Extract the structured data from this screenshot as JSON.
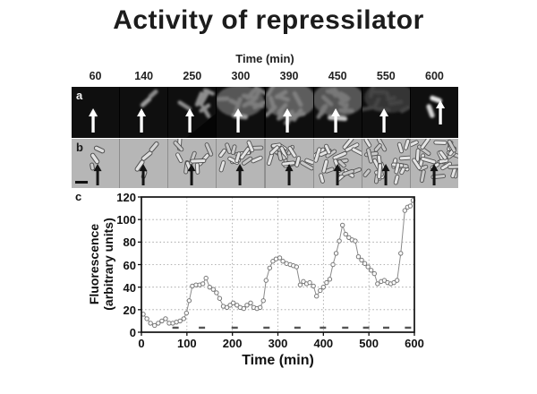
{
  "title": "Activity of repressilator",
  "colors": {
    "background": "#ffffff",
    "title_text": "#1c1c1c",
    "axis": "#111111",
    "series_line": "#8a8a8a",
    "marker_stroke": "#777777",
    "marker_fill": "#ffffff",
    "grid": "#9a9a9a",
    "division_mark": "#555555",
    "micrograph_a_bg": "#0f0f0f",
    "micrograph_b_bg": "#b6b6b6",
    "arrow_a": "#ffffff",
    "arrow_b": "#141414"
  },
  "micrograph_strip": {
    "header": "Time (min)",
    "row_a_label": "a",
    "row_b_label": "b",
    "frames": [
      {
        "time": "60",
        "a_style": "faint-speck",
        "b_cells": 3
      },
      {
        "time": "140",
        "a_style": "small-pair",
        "b_cells": 4
      },
      {
        "time": "250",
        "a_style": "small-cluster",
        "b_cells": 10
      },
      {
        "time": "300",
        "a_style": "colony",
        "b_cells": 14
      },
      {
        "time": "390",
        "a_style": "large-colony",
        "b_cells": 17
      },
      {
        "time": "450",
        "a_style": "colony-bright-rod",
        "b_cells": 20
      },
      {
        "time": "550",
        "a_style": "dim-colony",
        "b_cells": 24
      },
      {
        "time": "600",
        "a_style": "bright-single",
        "b_cells": 26
      }
    ],
    "scale_bar_frame": 0
  },
  "chart_data": {
    "type": "line",
    "panel_label": "c",
    "xlabel": "Time (min)",
    "ylabel_line1": "Fluorescence",
    "ylabel_line2": "(arbitrary units)",
    "xlim": [
      0,
      600
    ],
    "ylim": [
      0,
      120
    ],
    "xticks": [
      0,
      100,
      200,
      300,
      400,
      500,
      600
    ],
    "yticks": [
      0,
      20,
      40,
      60,
      80,
      100,
      120
    ],
    "grid": "dotted",
    "marker": "open-circle",
    "legend": "none",
    "points": [
      [
        4,
        16
      ],
      [
        12,
        12
      ],
      [
        20,
        8
      ],
      [
        29,
        6
      ],
      [
        37,
        8
      ],
      [
        45,
        10
      ],
      [
        53,
        12
      ],
      [
        61,
        8
      ],
      [
        69,
        8
      ],
      [
        77,
        9
      ],
      [
        85,
        10
      ],
      [
        93,
        12
      ],
      [
        99,
        17
      ],
      [
        105,
        28
      ],
      [
        112,
        41
      ],
      [
        120,
        42
      ],
      [
        128,
        42
      ],
      [
        135,
        43
      ],
      [
        142,
        48
      ],
      [
        150,
        40
      ],
      [
        158,
        38
      ],
      [
        165,
        35
      ],
      [
        172,
        30
      ],
      [
        180,
        23
      ],
      [
        188,
        22
      ],
      [
        195,
        24
      ],
      [
        202,
        26
      ],
      [
        210,
        24
      ],
      [
        217,
        22
      ],
      [
        225,
        21
      ],
      [
        232,
        24
      ],
      [
        240,
        26
      ],
      [
        247,
        22
      ],
      [
        254,
        21
      ],
      [
        261,
        22
      ],
      [
        268,
        28
      ],
      [
        274,
        46
      ],
      [
        282,
        57
      ],
      [
        289,
        63
      ],
      [
        296,
        65
      ],
      [
        304,
        66
      ],
      [
        311,
        63
      ],
      [
        319,
        61
      ],
      [
        327,
        60
      ],
      [
        334,
        59
      ],
      [
        341,
        58
      ],
      [
        349,
        42
      ],
      [
        356,
        45
      ],
      [
        363,
        43
      ],
      [
        370,
        44
      ],
      [
        378,
        41
      ],
      [
        385,
        32
      ],
      [
        393,
        37
      ],
      [
        400,
        40
      ],
      [
        407,
        44
      ],
      [
        414,
        47
      ],
      [
        421,
        60
      ],
      [
        428,
        70
      ],
      [
        435,
        81
      ],
      [
        442,
        95
      ],
      [
        449,
        87
      ],
      [
        456,
        84
      ],
      [
        463,
        82
      ],
      [
        470,
        81
      ],
      [
        477,
        67
      ],
      [
        484,
        64
      ],
      [
        491,
        61
      ],
      [
        498,
        58
      ],
      [
        505,
        55
      ],
      [
        512,
        52
      ],
      [
        519,
        43
      ],
      [
        527,
        45
      ],
      [
        534,
        46
      ],
      [
        541,
        44
      ],
      [
        548,
        43
      ],
      [
        555,
        44
      ],
      [
        562,
        46
      ],
      [
        570,
        70
      ],
      [
        579,
        108
      ],
      [
        585,
        111
      ],
      [
        591,
        112
      ],
      [
        597,
        117
      ]
    ],
    "division_marks": [
      75,
      133,
      205,
      275,
      343,
      399,
      448,
      494,
      538,
      586
    ]
  }
}
